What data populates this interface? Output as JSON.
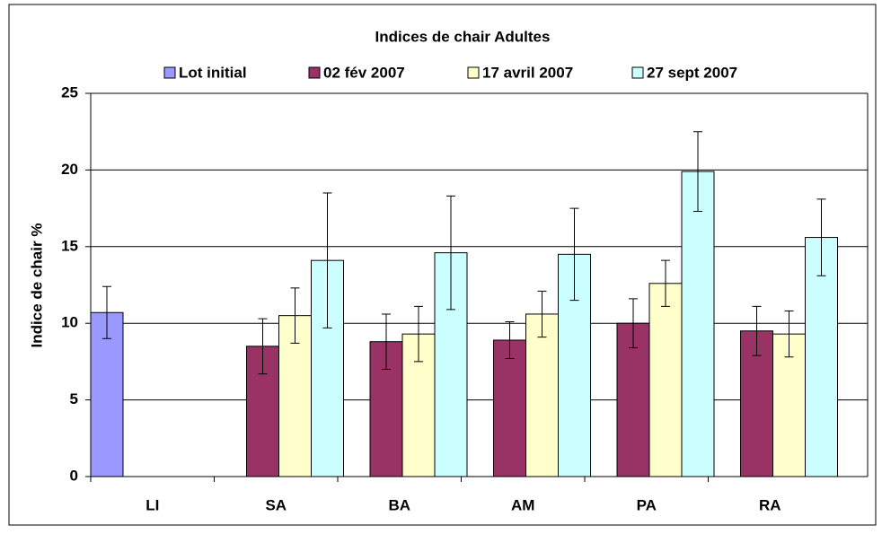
{
  "chart_data": {
    "type": "bar",
    "title": "Indices de chair Adultes",
    "y_label": "Indice de chair %",
    "categories": [
      "LI",
      "SA",
      "BA",
      "AM",
      "PA",
      "RA"
    ],
    "series": [
      {
        "name": "Lot initial",
        "color": "#9999ff",
        "values": [
          10.7,
          null,
          null,
          null,
          null,
          null
        ],
        "errors": [
          1.7,
          null,
          null,
          null,
          null,
          null
        ]
      },
      {
        "name": "02 fév 2007",
        "color": "#993366",
        "values": [
          null,
          8.5,
          8.8,
          8.9,
          10.0,
          9.5
        ],
        "errors": [
          null,
          1.8,
          1.8,
          1.2,
          1.6,
          1.6
        ]
      },
      {
        "name": "17 avril 2007",
        "color": "#ffffcc",
        "values": [
          null,
          10.5,
          9.3,
          10.6,
          12.6,
          9.3
        ],
        "errors": [
          null,
          1.8,
          1.8,
          1.5,
          1.5,
          1.5
        ]
      },
      {
        "name": "27 sept 2007",
        "color": "#ccffff",
        "values": [
          null,
          14.1,
          14.6,
          14.5,
          19.9,
          15.6
        ],
        "errors": [
          null,
          4.4,
          3.7,
          3.0,
          2.6,
          2.5
        ]
      }
    ],
    "ylim": [
      0,
      25
    ],
    "yticks": [
      0,
      5,
      10,
      15,
      20,
      25
    ],
    "grid": true
  }
}
